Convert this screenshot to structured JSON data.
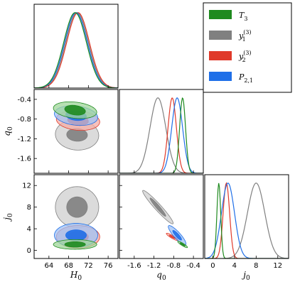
{
  "chart_data": {
    "type": "corner-plot",
    "parameters": [
      {
        "key": "H0",
        "label": "H",
        "sub": "0",
        "range": [
          61,
          78
        ],
        "ticks": [
          64,
          68,
          72,
          76
        ],
        "tick_labels": [
          "64",
          "68",
          "72",
          "76"
        ]
      },
      {
        "key": "q0",
        "label": "q",
        "sub": "0",
        "range": [
          -1.9,
          -0.2
        ],
        "ticks": [
          -1.6,
          -1.2,
          -0.8,
          -0.4
        ],
        "tick_labels": [
          "-1.6",
          "-1.2",
          "-0.8",
          "-0.4"
        ]
      },
      {
        "key": "j0",
        "label": "j",
        "sub": "0",
        "range": [
          -1.5,
          14
        ],
        "ticks": [
          0,
          4,
          8,
          12
        ],
        "tick_labels": [
          "0",
          "4",
          "8",
          "12"
        ]
      }
    ],
    "legend": {
      "placement": "top-right",
      "entries": [
        {
          "key": "T3",
          "base": "T",
          "sub": "3",
          "sup": ""
        },
        {
          "key": "y1",
          "base": "y",
          "sub": "1",
          "sup": "(3)"
        },
        {
          "key": "y2",
          "base": "y",
          "sub": "2",
          "sup": "(3)"
        },
        {
          "key": "P21",
          "base": "P",
          "sub": "2,1",
          "sup": ""
        }
      ]
    },
    "series": [
      {
        "key": "y1",
        "color": "#808080",
        "light": "#cfcfcf",
        "mean": {
          "H0": 69.7,
          "q0": -1.12,
          "j0": 8.0
        },
        "sd": {
          "H0": 2.3,
          "q0": 0.16,
          "j0": 1.6
        },
        "contours": {
          "H0_q0": {
            "rho": -0.05,
            "in": [
              2.1,
              0.13
            ],
            "out": [
              4.4,
              0.31
            ]
          },
          "H0_j0": {
            "rho": 0.0,
            "in": [
              2.1,
              1.9
            ],
            "out": [
              4.4,
              3.8
            ]
          },
          "q0_j0": {
            "rho": -0.96,
            "in": [
              0.16,
              1.7
            ],
            "out": [
              0.31,
              3.1
            ]
          }
        }
      },
      {
        "key": "y2",
        "color": "#e03a2a",
        "light": "#f5aea5",
        "mean": {
          "H0": 69.9,
          "q0": -0.83,
          "j0": 2.5
        },
        "sd": {
          "H0": 2.3,
          "q0": 0.085,
          "j0": 0.6
        },
        "contours": {
          "H0_q0": {
            "rho": -0.15,
            "in": [
              2.1,
              0.1
            ],
            "out": [
              4.4,
              0.2
            ]
          },
          "H0_j0": {
            "rho": 0.0,
            "in": [
              2.1,
              1.0
            ],
            "out": [
              4.4,
              2.1
            ]
          },
          "q0_j0": {
            "rho": -0.9,
            "in": [
              0.06,
              0.32
            ],
            "out": [
              0.12,
              0.68
            ]
          }
        }
      },
      {
        "key": "P21",
        "color": "#1f6fe8",
        "light": "#9fc2f5",
        "mean": {
          "H0": 69.5,
          "q0": -0.73,
          "j0": 2.8
        },
        "sd": {
          "H0": 2.3,
          "q0": 0.11,
          "j0": 1.2
        },
        "contours": {
          "H0_q0": {
            "rho": -0.2,
            "in": [
              2.1,
              0.1
            ],
            "out": [
              4.4,
              0.2
            ]
          },
          "H0_j0": {
            "rho": 0.0,
            "in": [
              2.1,
              1.0
            ],
            "out": [
              4.4,
              2.2
            ]
          },
          "q0_j0": {
            "rho": -0.88,
            "in": [
              0.09,
              0.9
            ],
            "out": [
              0.18,
              1.8
            ]
          }
        }
      },
      {
        "key": "T3",
        "color": "#1f8a1f",
        "light": "#9fd69a",
        "mean": {
          "H0": 69.3,
          "q0": -0.62,
          "j0": 1.1
        },
        "sd": {
          "H0": 2.3,
          "q0": 0.06,
          "j0": 0.35
        },
        "contours": {
          "H0_q0": {
            "rho": -0.25,
            "in": [
              2.1,
              0.1
            ],
            "out": [
              4.4,
              0.17
            ]
          },
          "H0_j0": {
            "rho": 0.0,
            "in": [
              2.1,
              0.5
            ],
            "out": [
              4.4,
              0.9
            ]
          },
          "q0_j0": {
            "rho": -0.9,
            "in": [
              0.05,
              0.3
            ],
            "out": [
              0.1,
              0.6
            ]
          }
        }
      }
    ],
    "grid": false
  }
}
